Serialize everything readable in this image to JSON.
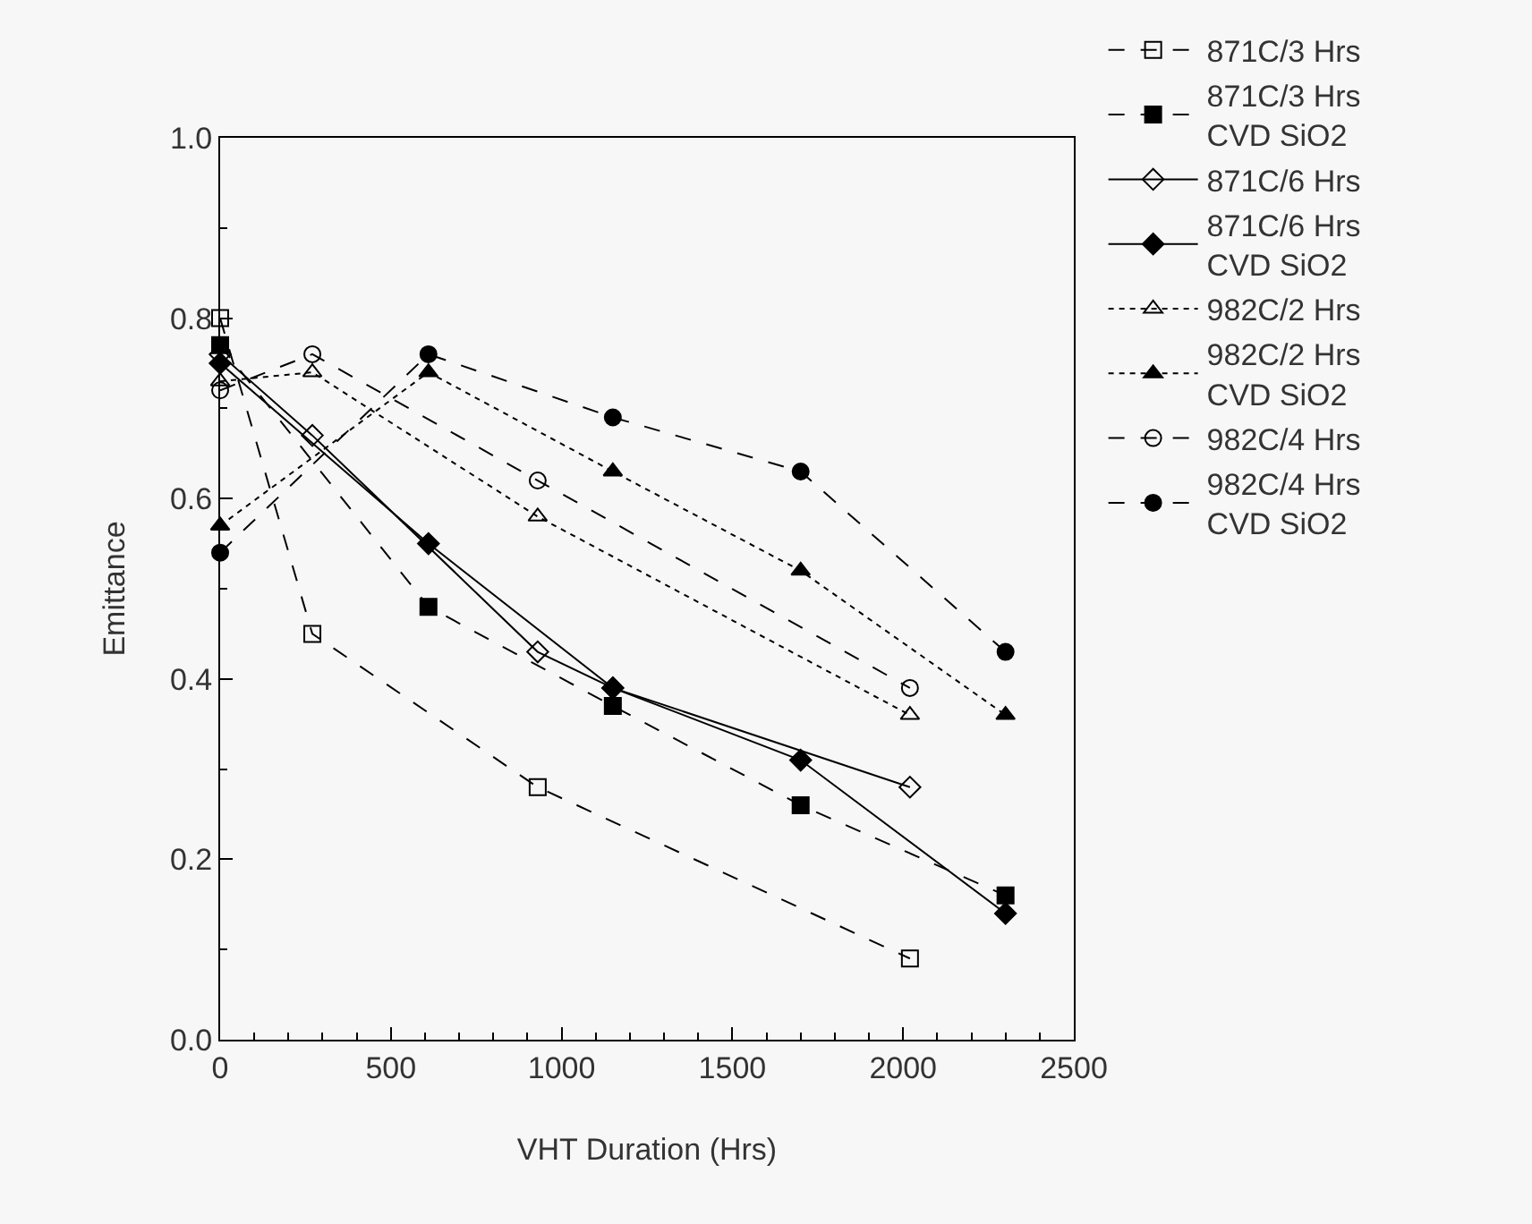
{
  "chart_data": {
    "type": "line",
    "xlabel": "VHT Duration (Hrs)",
    "ylabel": "Emittance",
    "xlim": [
      0,
      2500
    ],
    "xticks": [
      0,
      500,
      1000,
      1500,
      2000,
      2500
    ],
    "ylim": [
      0,
      1
    ],
    "yticks": [
      {
        "value": 0,
        "label": "0.0"
      },
      {
        "value": 0.2,
        "label": "0.2"
      },
      {
        "value": 0.4,
        "label": "0.4"
      },
      {
        "value": 0.6,
        "label": "0.6"
      },
      {
        "value": 0.8,
        "label": "0.8"
      },
      {
        "value": 1,
        "label": "1.0"
      }
    ],
    "grid": false,
    "legend": "right",
    "series": [
      {
        "name": "871C/3 Hrs",
        "color": "#000000",
        "marker": "square-open",
        "line_style": "dashed",
        "x": [
          0,
          270,
          930,
          2020
        ],
        "values": [
          0.8,
          0.45,
          0.28,
          0.09
        ]
      },
      {
        "name": "871C/3 Hrs\nCVD SiO2",
        "color": "#000000",
        "marker": "square",
        "line_style": "dashed",
        "x": [
          0,
          610,
          1150,
          1700,
          2300
        ],
        "values": [
          0.77,
          0.48,
          0.37,
          0.26,
          0.16
        ]
      },
      {
        "name": "871C/6 Hrs",
        "color": "#000000",
        "marker": "diamond-open",
        "line_style": "solid",
        "x": [
          0,
          270,
          930,
          1150,
          2020
        ],
        "values": [
          0.76,
          0.67,
          0.43,
          0.39,
          0.28
        ]
      },
      {
        "name": "871C/6 Hrs\nCVD SiO2",
        "color": "#000000",
        "marker": "diamond",
        "line_style": "solid",
        "x": [
          0,
          610,
          1150,
          1700,
          2300
        ],
        "values": [
          0.75,
          0.55,
          0.39,
          0.31,
          0.14
        ]
      },
      {
        "name": "982C/2 Hrs",
        "color": "#000000",
        "marker": "triangle-open",
        "line_style": "dotted",
        "x": [
          0,
          270,
          930,
          2020
        ],
        "values": [
          0.73,
          0.74,
          0.58,
          0.36
        ]
      },
      {
        "name": "982C/2 Hrs\nCVD SiO2",
        "color": "#000000",
        "marker": "triangle",
        "line_style": "dotted",
        "x": [
          0,
          610,
          1150,
          1700,
          2300
        ],
        "values": [
          0.57,
          0.74,
          0.63,
          0.52,
          0.36
        ]
      },
      {
        "name": "982C/4 Hrs",
        "color": "#000000",
        "marker": "circle-open",
        "line_style": "dashed",
        "x": [
          0,
          270,
          930,
          2020
        ],
        "values": [
          0.72,
          0.76,
          0.62,
          0.39
        ]
      },
      {
        "name": "982C/4 Hrs\nCVD SiO2",
        "color": "#000000",
        "marker": "circle",
        "line_style": "dashed",
        "x": [
          0,
          610,
          1150,
          1700,
          2300
        ],
        "values": [
          0.54,
          0.76,
          0.69,
          0.63,
          0.43
        ]
      }
    ]
  }
}
